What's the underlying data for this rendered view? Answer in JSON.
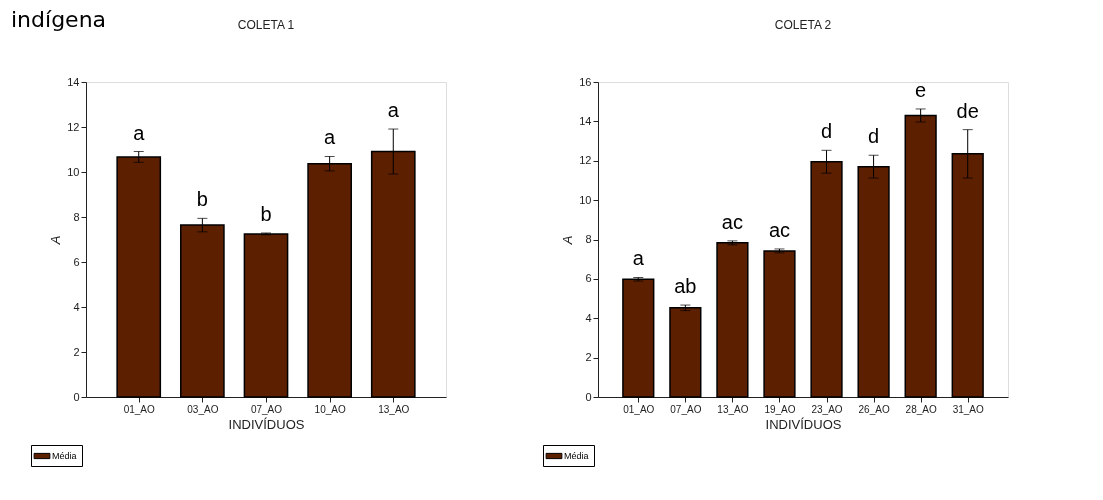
{
  "chart_data": [
    {
      "type": "bar",
      "title": "COLETA 1",
      "xlabel": "INDIVÍDUOS",
      "ylabel": "A",
      "categories": [
        "01_AO",
        "03_AO",
        "07_AO",
        "10_AO",
        "13_AO"
      ],
      "series": [
        {
          "name": "Média",
          "color": "#5c1f00",
          "values": [
            10.67,
            7.64,
            7.25,
            10.37,
            10.91
          ],
          "errors": [
            0.24,
            0.3,
            0.04,
            0.32,
            1.0
          ],
          "value_labels": [
            "a",
            "b",
            "b",
            "a",
            "a"
          ]
        }
      ],
      "ylim": [
        0,
        14
      ],
      "yticks": [
        0,
        2,
        4,
        6,
        8,
        10,
        12,
        14
      ],
      "legend": "bottom left",
      "annotations": [
        "indígena"
      ]
    },
    {
      "type": "bar",
      "title": "COLETA 2",
      "xlabel": "INDIVÍDUOS",
      "ylabel": "A",
      "categories": [
        "01_AO",
        "07_AO",
        "13_AO",
        "19_AO",
        "23_AO",
        "26_AO",
        "28_AO",
        "31_AO"
      ],
      "series": [
        {
          "name": "Média",
          "color": "#5c1f00",
          "values": [
            5.98,
            4.53,
            7.83,
            7.42,
            11.95,
            11.7,
            14.3,
            12.35
          ],
          "errors": [
            0.09,
            0.14,
            0.1,
            0.1,
            0.58,
            0.58,
            0.33,
            1.23
          ],
          "value_labels": [
            "a",
            "ab",
            "ac",
            "ac",
            "d",
            "d",
            "e",
            "de"
          ]
        }
      ],
      "ylim": [
        0,
        16
      ],
      "yticks": [
        0,
        2,
        4,
        6,
        8,
        10,
        12,
        14,
        16
      ],
      "legend": "bottom left"
    }
  ]
}
